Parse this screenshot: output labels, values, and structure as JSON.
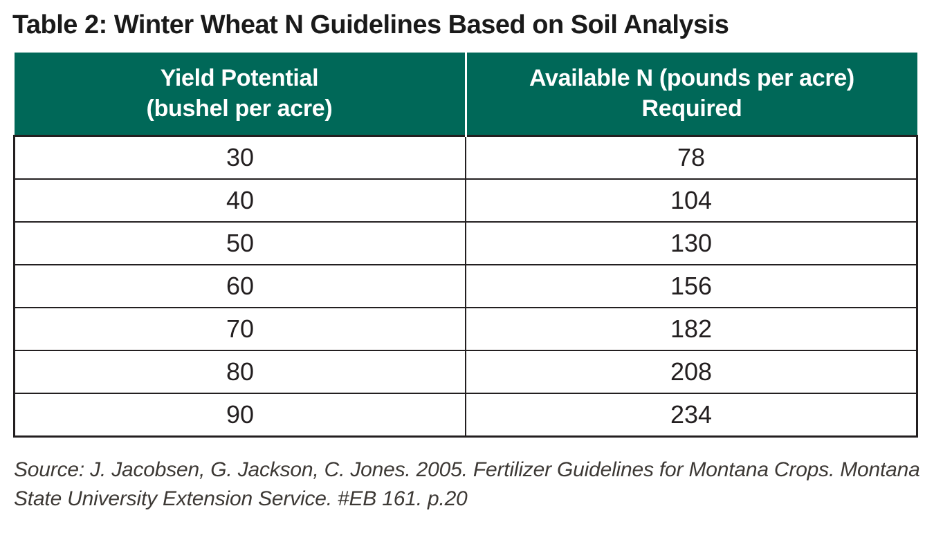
{
  "title": "Table 2: Winter Wheat N Guidelines Based on Soil Analysis",
  "colors": {
    "header_green": "#006858",
    "border_dark": "#231f20",
    "source_text": "#3d3935"
  },
  "table": {
    "headers": [
      "Yield Potential\n(bushel per acre)",
      "Available N (pounds per acre)\nRequired"
    ],
    "rows": [
      [
        "30",
        "78"
      ],
      [
        "40",
        "104"
      ],
      [
        "50",
        "130"
      ],
      [
        "60",
        "156"
      ],
      [
        "70",
        "182"
      ],
      [
        "80",
        "208"
      ],
      [
        "90",
        "234"
      ]
    ]
  },
  "source": "Source: J. Jacobsen, G. Jackson, C. Jones. 2005. Fertilizer Guidelines for Montana Crops. Montana\nState University Extension Service. #EB 161. p.20"
}
